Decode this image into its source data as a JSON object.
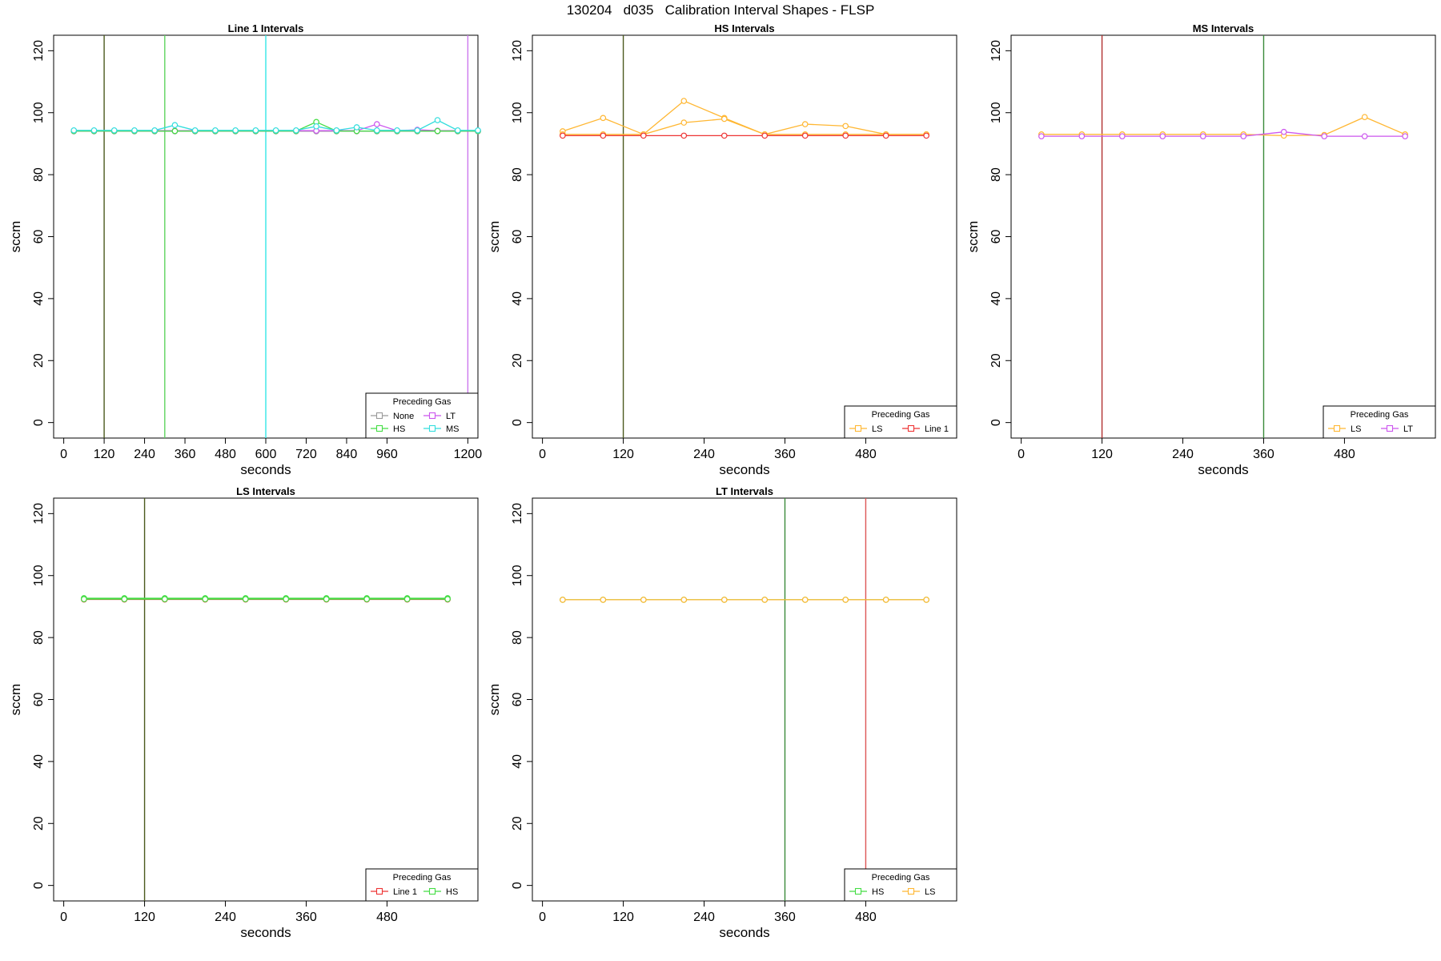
{
  "page_title": "130204   d035   Calibration Interval Shapes - FLSP",
  "chart_data": [
    {
      "type": "line",
      "title": "Line 1 Intervals",
      "xlabel": "seconds",
      "ylabel": "sccm",
      "xlim": [
        -30,
        1230
      ],
      "ylim": [
        -5,
        125
      ],
      "x_ticks": [
        0,
        120,
        240,
        360,
        480,
        600,
        720,
        840,
        960,
        1200
      ],
      "y_ticks": [
        0,
        20,
        40,
        60,
        80,
        100,
        120
      ],
      "vlines": [
        {
          "x": 120,
          "color": "#4b5a1e"
        },
        {
          "x": 300,
          "color": "#5ed45e"
        },
        {
          "x": 600,
          "color": "#33e6e6"
        },
        {
          "x": 1200,
          "color": "#cc77ee"
        }
      ],
      "legend": {
        "title": "Preceding Gas",
        "position": "bottom-right",
        "columns": 2
      },
      "series": [
        {
          "name": "None",
          "color": "#999999",
          "x": [
            30,
            90,
            150,
            210,
            270,
            330,
            390,
            450,
            510,
            570,
            630,
            690,
            750,
            810,
            870,
            930,
            990,
            1050,
            1110,
            1170,
            1230
          ],
          "y": [
            94,
            94,
            94,
            94,
            94,
            94,
            94,
            94,
            94,
            94,
            94,
            94,
            94,
            94,
            94,
            94,
            94,
            94,
            94,
            94,
            94
          ]
        },
        {
          "name": "LT",
          "color": "#cc55ee",
          "x": [
            30,
            90,
            150,
            210,
            270,
            330,
            390,
            450,
            510,
            570,
            630,
            690,
            750,
            810,
            870,
            930,
            990,
            1050,
            1110,
            1170,
            1230
          ],
          "y": [
            94.2,
            94.2,
            94.2,
            94.2,
            94.2,
            94.2,
            94.2,
            94.2,
            94.2,
            94.2,
            94.2,
            94.2,
            94.2,
            94.2,
            94.2,
            96.3,
            94.2,
            94.5,
            94.2,
            94.2,
            94.2
          ]
        },
        {
          "name": "HS",
          "color": "#44dd44",
          "x": [
            30,
            90,
            150,
            210,
            270,
            330,
            390,
            450,
            510,
            570,
            630,
            690,
            750,
            810,
            870,
            930,
            990,
            1050,
            1110,
            1170,
            1230
          ],
          "y": [
            94.1,
            94.1,
            94.1,
            94.1,
            94.1,
            94.1,
            94.1,
            94.1,
            94.1,
            94.1,
            94.1,
            94.1,
            97,
            94.1,
            94.1,
            94.1,
            94.1,
            94.1,
            94.1,
            94.1,
            94.1
          ]
        },
        {
          "name": "MS",
          "color": "#33dddd",
          "x": [
            30,
            90,
            150,
            210,
            270,
            330,
            390,
            450,
            510,
            570,
            630,
            690,
            750,
            810,
            870,
            930,
            990,
            1050,
            1110,
            1170,
            1230
          ],
          "y": [
            94.3,
            94.3,
            94.3,
            94.3,
            94.3,
            96,
            94.3,
            94.3,
            94.3,
            94.3,
            94.3,
            94.3,
            95.6,
            94.3,
            95.3,
            94.3,
            94.3,
            94.3,
            97.6,
            94.3,
            94.3
          ]
        }
      ]
    },
    {
      "type": "line",
      "title": "HS Intervals",
      "xlabel": "seconds",
      "ylabel": "sccm",
      "xlim": [
        -15,
        615
      ],
      "ylim": [
        -5,
        125
      ],
      "x_ticks": [
        0,
        120,
        240,
        360,
        480
      ],
      "y_ticks": [
        0,
        20,
        40,
        60,
        80,
        100,
        120
      ],
      "vlines": [
        {
          "x": 120,
          "color": "#4b5a1e"
        }
      ],
      "legend": {
        "title": "Preceding Gas",
        "position": "bottom-right",
        "columns": 2
      },
      "series": [
        {
          "name": "LS",
          "color": "#ffb733",
          "x": [
            30,
            90,
            150,
            210,
            270,
            330,
            390,
            450,
            510,
            570
          ],
          "y": [
            94,
            98.3,
            93,
            103.8,
            98.3,
            93,
            96.3,
            95.7,
            93,
            93
          ]
        },
        {
          "name": "",
          "color": "#ffb733",
          "x": [
            30,
            90,
            150,
            210,
            270,
            330,
            390,
            450,
            510,
            570
          ],
          "y": [
            93,
            93,
            93,
            96.8,
            98,
            93,
            93,
            93,
            93,
            93
          ]
        },
        {
          "name": "Line 1",
          "color": "#ee3333",
          "x": [
            30,
            90,
            150,
            210,
            270,
            330,
            390,
            450,
            510,
            570
          ],
          "y": [
            92.6,
            92.6,
            92.6,
            92.6,
            92.6,
            92.6,
            92.6,
            92.6,
            92.6,
            92.6
          ]
        }
      ]
    },
    {
      "type": "line",
      "title": "MS Intervals",
      "xlabel": "seconds",
      "ylabel": "sccm",
      "xlim": [
        -15,
        615
      ],
      "ylim": [
        -5,
        125
      ],
      "x_ticks": [
        0,
        120,
        240,
        360,
        480
      ],
      "y_ticks": [
        0,
        20,
        40,
        60,
        80,
        100,
        120
      ],
      "vlines": [
        {
          "x": 120,
          "color": "#b03030"
        },
        {
          "x": 360,
          "color": "#3a8a3a"
        }
      ],
      "legend": {
        "title": "Preceding Gas",
        "position": "bottom-right",
        "columns": 2
      },
      "series": [
        {
          "name": "LS",
          "color": "#ffb733",
          "x": [
            30,
            90,
            150,
            210,
            270,
            330,
            390,
            450,
            510,
            570
          ],
          "y": [
            93,
            93,
            93,
            93,
            93,
            93,
            92.6,
            92.8,
            98.6,
            93
          ]
        },
        {
          "name": "LT",
          "color": "#cc55ee",
          "x": [
            30,
            90,
            150,
            210,
            270,
            330,
            390,
            450,
            510,
            570
          ],
          "y": [
            92.4,
            92.4,
            92.4,
            92.4,
            92.4,
            92.4,
            93.8,
            92.4,
            92.4,
            92.4
          ]
        }
      ]
    },
    {
      "type": "line",
      "title": "LS Intervals",
      "xlabel": "seconds",
      "ylabel": "sccm",
      "xlim": [
        -15,
        615
      ],
      "ylim": [
        -5,
        125
      ],
      "x_ticks": [
        0,
        120,
        240,
        360,
        480
      ],
      "y_ticks": [
        0,
        20,
        40,
        60,
        80,
        100,
        120
      ],
      "vlines": [
        {
          "x": 120,
          "color": "#4b5a1e"
        }
      ],
      "legend": {
        "title": "Preceding Gas",
        "position": "bottom-right",
        "columns": 2
      },
      "series": [
        {
          "name": "Line 1",
          "color": "#ee3333",
          "x": [
            30,
            90,
            150,
            210,
            270,
            330,
            390,
            450,
            510,
            570
          ],
          "y": [
            92.3,
            92.3,
            92.3,
            92.3,
            92.3,
            92.3,
            92.3,
            92.3,
            92.3,
            92.3
          ]
        },
        {
          "name": "HS",
          "color": "#44dd44",
          "x": [
            30,
            90,
            150,
            210,
            270,
            330,
            390,
            450,
            510,
            570
          ],
          "y": [
            92.7,
            92.7,
            92.7,
            92.7,
            92.7,
            92.7,
            92.7,
            92.7,
            92.7,
            92.7
          ]
        },
        {
          "name": "",
          "color": "#44dd44",
          "x": [
            30,
            90,
            150,
            210,
            270,
            330,
            390,
            450,
            510,
            570
          ],
          "y": [
            92.4,
            92.4,
            92.4,
            92.4,
            92.4,
            92.4,
            92.4,
            92.4,
            92.4,
            92.4
          ]
        }
      ]
    },
    {
      "type": "line",
      "title": "LT Intervals",
      "xlabel": "seconds",
      "ylabel": "sccm",
      "xlim": [
        -15,
        615
      ],
      "ylim": [
        -5,
        125
      ],
      "x_ticks": [
        0,
        120,
        240,
        360,
        480
      ],
      "y_ticks": [
        0,
        20,
        40,
        60,
        80,
        100,
        120
      ],
      "vlines": [
        {
          "x": 360,
          "color": "#3a8a3a"
        },
        {
          "x": 480,
          "color": "#dd5555"
        }
      ],
      "legend": {
        "title": "Preceding Gas",
        "position": "bottom-right",
        "columns": 2
      },
      "series": [
        {
          "name": "HS",
          "color": "#44dd44",
          "x": [
            30,
            90,
            150,
            210,
            270,
            330,
            390,
            450,
            510,
            570
          ],
          "y": [
            92.2,
            92.2,
            92.2,
            92.2,
            92.2,
            92.2,
            92.2,
            92.2,
            92.2,
            92.2
          ]
        },
        {
          "name": "LS",
          "color": "#ffb733",
          "x": [
            30,
            90,
            150,
            210,
            270,
            330,
            390,
            450,
            510,
            570
          ],
          "y": [
            92.2,
            92.2,
            92.2,
            92.2,
            92.2,
            92.2,
            92.2,
            92.2,
            92.2,
            92.2
          ]
        }
      ]
    }
  ]
}
